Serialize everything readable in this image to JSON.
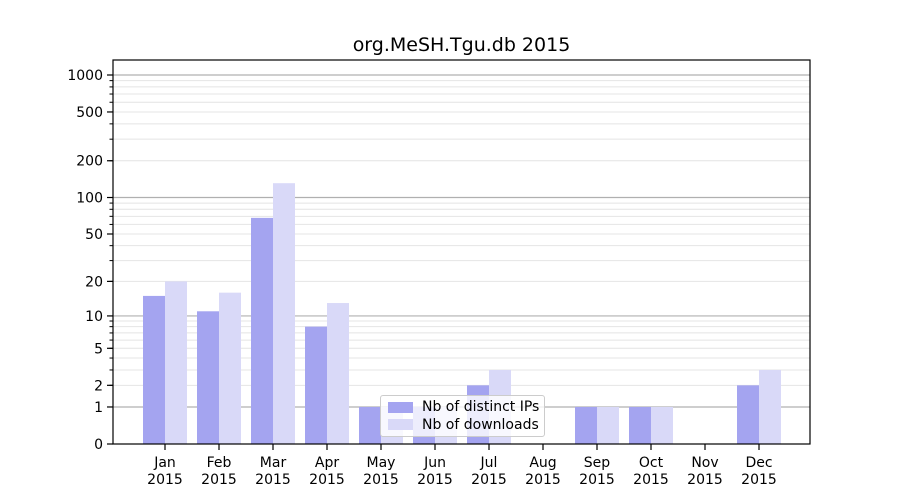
{
  "title": "org.MeSH.Tgu.db 2015",
  "chart_data": {
    "type": "bar",
    "title": "org.MeSH.Tgu.db 2015",
    "categories": [
      "Jan 2015",
      "Feb 2015",
      "Mar 2015",
      "Apr 2015",
      "May 2015",
      "Jun 2015",
      "Jul 2015",
      "Aug 2015",
      "Sep 2015",
      "Oct 2015",
      "Nov 2015",
      "Dec 2015"
    ],
    "series": [
      {
        "name": "Nb of distinct IPs",
        "color": "#a4a4f0",
        "values": [
          15,
          11,
          68,
          8,
          1,
          1,
          2,
          0,
          1,
          1,
          0,
          2
        ]
      },
      {
        "name": "Nb of downloads",
        "color": "#d9d9f8",
        "values": [
          20,
          16,
          131,
          13,
          1,
          1,
          3,
          0,
          1,
          1,
          0,
          3
        ]
      }
    ],
    "xlabel": "",
    "ylabel": "",
    "yscale": "log10(1+x)",
    "ylim": [
      0,
      1000
    ],
    "yticks": [
      0,
      1,
      2,
      5,
      10,
      20,
      50,
      100,
      200,
      500,
      1000
    ],
    "grid": true,
    "legend_position": "lower-center-inside"
  },
  "colors": {
    "axis": "#000000",
    "grid_major": "#b0b0b0",
    "grid_minor": "#e4e4e4",
    "tick_text": "#000000",
    "legend_bg": "rgba(255,255,255,0.8)",
    "legend_border": "#cccccc",
    "background": "#ffffff"
  }
}
